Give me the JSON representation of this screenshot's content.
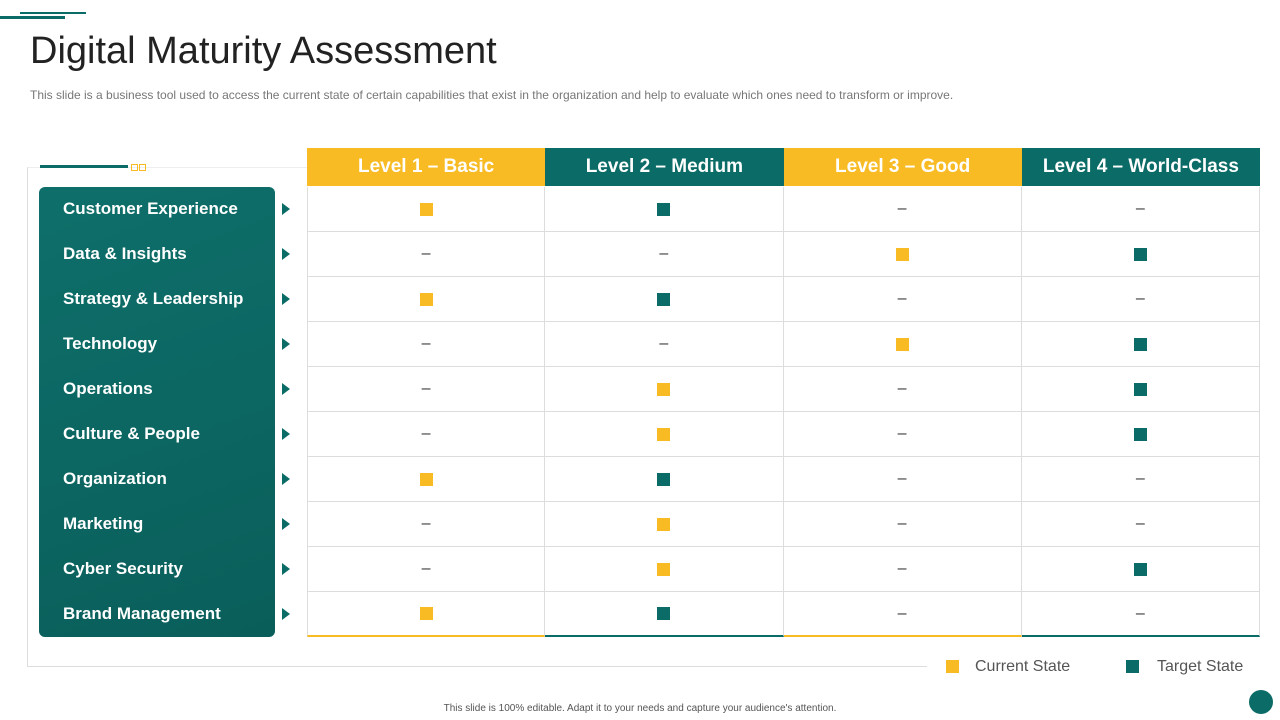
{
  "header": {
    "title": "Digital Maturity Assessment",
    "subtitle": "This slide is a business tool used to access the current state of certain capabilities that exist in the organization and help to evaluate  which ones need to transform or improve."
  },
  "table": {
    "columns": [
      "Level 1 – Basic",
      "Level 2 – Medium",
      "Level 3 – Good",
      "Level 4 – World-Class"
    ],
    "empty": "–",
    "rows": [
      {
        "label": "Customer Experience",
        "current": 0,
        "target": 1
      },
      {
        "label": "Data & Insights",
        "current": 2,
        "target": 3
      },
      {
        "label": "Strategy & Leadership",
        "current": 0,
        "target": 1
      },
      {
        "label": "Technology",
        "current": 2,
        "target": 3
      },
      {
        "label": "Operations",
        "current": 1,
        "target": 3
      },
      {
        "label": "Culture & People",
        "current": 1,
        "target": 3
      },
      {
        "label": "Organization",
        "current": 0,
        "target": 1
      },
      {
        "label": "Marketing",
        "current": 1,
        "target": null
      },
      {
        "label": "Cyber Security",
        "current": 1,
        "target": 3
      },
      {
        "label": "Brand Management",
        "current": 0,
        "target": 1
      }
    ]
  },
  "legend": {
    "current": "Current State",
    "target": "Target State"
  },
  "footer": "This slide is 100% editable. Adapt it to your needs and capture your audience's attention."
}
